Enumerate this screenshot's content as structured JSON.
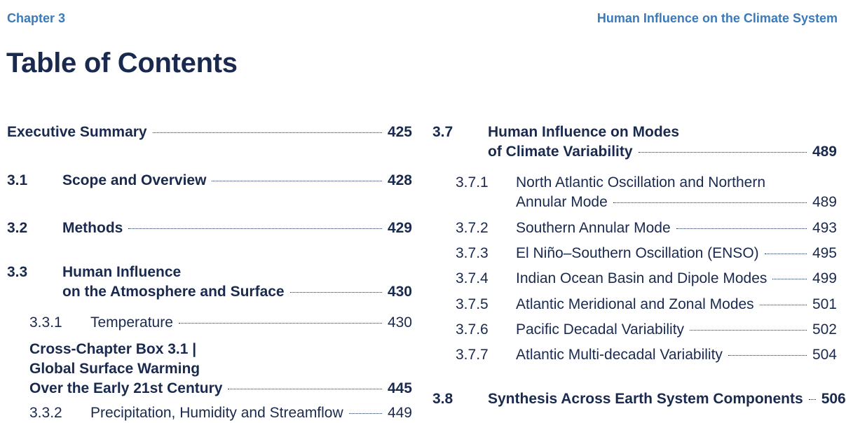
{
  "header": {
    "chapter": "Chapter 3",
    "running_title": "Human Influence on the Climate System"
  },
  "title": "Table of Contents",
  "left_column": [
    {
      "num": "",
      "title": [
        "Executive Summary"
      ],
      "page": "425"
    },
    {
      "num": "3.1",
      "title": [
        "Scope and Overview"
      ],
      "page": "428"
    },
    {
      "num": "3.2",
      "title": [
        "Methods"
      ],
      "page": "429"
    },
    {
      "num": "3.3",
      "title": [
        "Human Influence",
        "on the Atmosphere and Surface"
      ],
      "page": "430"
    },
    {
      "num": "3.3.1",
      "title": [
        "Temperature"
      ],
      "page": "430"
    },
    {
      "num": "",
      "title": [
        "Cross-Chapter Box 3.1 |",
        "Global Surface Warming",
        "Over the Early 21st Century"
      ],
      "page": "445"
    },
    {
      "num": "3.3.2",
      "title": [
        "Precipitation, Humidity and Streamflow"
      ],
      "page": "449"
    }
  ],
  "right_column": [
    {
      "num": "3.7",
      "title": [
        "Human Influence on Modes",
        "of Climate Variability"
      ],
      "page": "489"
    },
    {
      "num": "3.7.1",
      "title": [
        "North Atlantic Oscillation and Northern",
        "Annular Mode"
      ],
      "page": "489"
    },
    {
      "num": "3.7.2",
      "title": [
        "Southern Annular Mode"
      ],
      "page": "493"
    },
    {
      "num": "3.7.3",
      "title": [
        "El Niño–Southern Oscillation (ENSO)"
      ],
      "page": "495"
    },
    {
      "num": "3.7.4",
      "title": [
        "Indian Ocean Basin and Dipole Modes"
      ],
      "page": "499"
    },
    {
      "num": "3.7.5",
      "title": [
        "Atlantic Meridional and Zonal Modes"
      ],
      "page": "501"
    },
    {
      "num": "3.7.6",
      "title": [
        "Pacific Decadal Variability"
      ],
      "page": "502"
    },
    {
      "num": "3.7.7",
      "title": [
        "Atlantic Multi-decadal Variability"
      ],
      "page": "504"
    },
    {
      "num": "3.8",
      "title": [
        "Synthesis Across Earth System Components"
      ],
      "page": "506"
    }
  ]
}
